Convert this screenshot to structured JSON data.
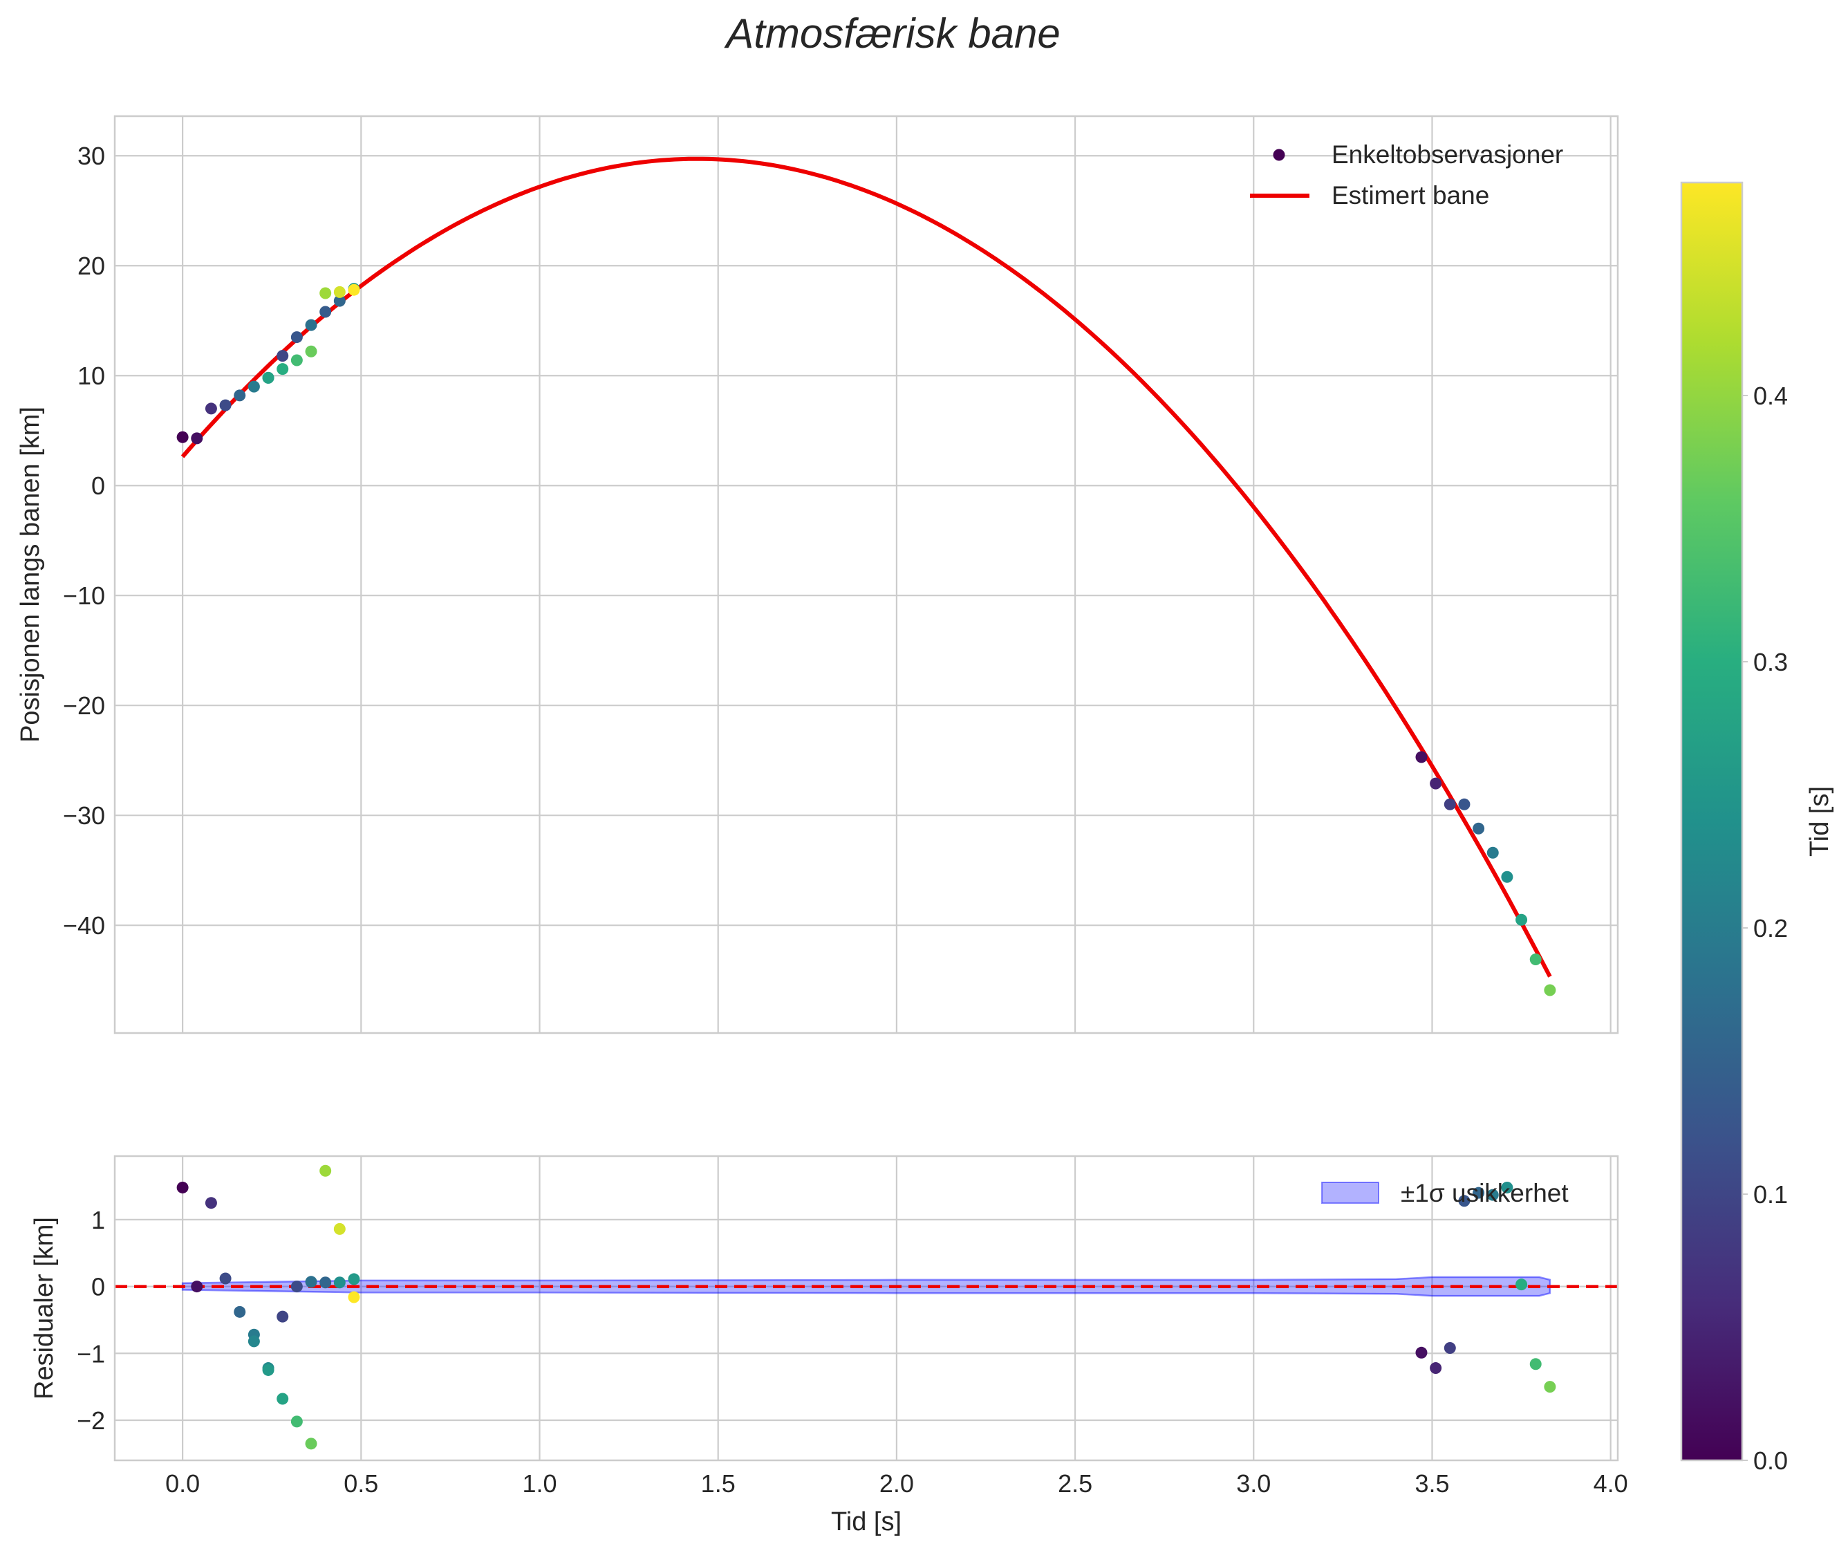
{
  "chart_data": [
    {
      "type": "scatter",
      "panel": "top",
      "title": "Atmosfærisk bane",
      "xlabel": "",
      "ylabel": "Posisjonen langs banen [km]",
      "xlim": [
        -0.19,
        4.02
      ],
      "ylim": [
        -49.8,
        33.6
      ],
      "xticks": [
        0.0,
        0.5,
        1.0,
        1.5,
        2.0,
        2.5,
        3.0,
        3.5,
        4.0
      ],
      "yticks": [
        30,
        20,
        10,
        0,
        -10,
        -20,
        -30,
        -40
      ],
      "ytick_labels": [
        "30",
        "20",
        "10",
        "0",
        "−10",
        "−20",
        "−30",
        "−40"
      ],
      "grid": true,
      "legend": {
        "location": "upper right",
        "entries": [
          "Enkeltobservasjoner",
          "Estimert bane"
        ]
      },
      "series": [
        {
          "name": "Enkeltobservasjoner",
          "kind": "scatter",
          "x": [
            0.0,
            0.04,
            0.08,
            0.12,
            0.16,
            0.2,
            0.24,
            0.28,
            0.32,
            0.36,
            0.4,
            0.44,
            0.48,
            0.24,
            0.28,
            0.32,
            0.36,
            0.4,
            0.44,
            0.48,
            3.47,
            3.51,
            3.55,
            3.59,
            3.63,
            3.67,
            3.71,
            3.75,
            3.79,
            3.83
          ],
          "y": [
            4.4,
            4.3,
            7.0,
            7.3,
            8.2,
            9.0,
            9.8,
            11.8,
            13.5,
            14.6,
            15.8,
            16.8,
            17.9,
            9.8,
            10.6,
            11.4,
            12.2,
            17.5,
            17.6,
            17.8,
            -24.7,
            -27.1,
            -29.0,
            -29.0,
            -31.2,
            -33.4,
            -35.6,
            -39.5,
            -43.1,
            -45.9
          ],
          "color_value": [
            0.0,
            0.02,
            0.07,
            0.11,
            0.16,
            0.2,
            0.23,
            0.1,
            0.13,
            0.18,
            0.14,
            0.16,
            0.26,
            0.28,
            0.3,
            0.33,
            0.37,
            0.41,
            0.45,
            0.48,
            0.02,
            0.05,
            0.09,
            0.13,
            0.16,
            0.2,
            0.24,
            0.28,
            0.33,
            0.38
          ]
        },
        {
          "name": "Estimert bane",
          "kind": "line",
          "color": "#ee0000",
          "model": "quadratic",
          "x_range": [
            0.0,
            3.83
          ],
          "points": {
            "x": [
              0.0,
              0.5,
              1.0,
              1.44,
              2.0,
              2.5,
              3.0,
              3.5,
              3.83
            ],
            "y": [
              2.8,
              17.9,
              27.1,
              29.8,
              25.7,
              15.3,
              -1.9,
              -26.0,
              -44.4
            ]
          }
        }
      ]
    },
    {
      "type": "scatter",
      "panel": "bottom",
      "xlabel": "Tid [s]",
      "ylabel": "Residualer [km]",
      "xlim": [
        -0.19,
        4.02
      ],
      "ylim": [
        -2.6,
        1.95
      ],
      "xticks": [
        0.0,
        0.5,
        1.0,
        1.5,
        2.0,
        2.5,
        3.0,
        3.5,
        4.0
      ],
      "xtick_labels": [
        "0.0",
        "0.5",
        "1.0",
        "1.5",
        "2.0",
        "2.5",
        "3.0",
        "3.5",
        "4.0"
      ],
      "yticks": [
        1,
        0,
        -1,
        -2
      ],
      "ytick_labels": [
        "1",
        "0",
        "−1",
        "−2"
      ],
      "grid": true,
      "legend": {
        "location": "upper right",
        "entries": [
          "±1σ usikkerhet"
        ]
      },
      "band": {
        "name": "±1σ usikkerhet",
        "color": "#0000ff",
        "opacity": 0.3,
        "x": [
          0.0,
          0.5,
          1.0,
          2.0,
          3.0,
          3.4,
          3.5,
          3.8,
          3.83
        ],
        "half_width": [
          0.05,
          0.09,
          0.09,
          0.1,
          0.1,
          0.11,
          0.14,
          0.14,
          0.1
        ]
      },
      "zero_line": {
        "y": 0,
        "color": "#ee0000",
        "style": "dashed"
      },
      "series": [
        {
          "name": "residuals",
          "x": [
            0.0,
            0.04,
            0.08,
            0.12,
            0.16,
            0.2,
            0.2,
            0.24,
            0.24,
            0.28,
            0.28,
            0.32,
            0.32,
            0.36,
            0.36,
            0.4,
            0.4,
            0.44,
            0.44,
            0.48,
            0.48,
            3.47,
            3.51,
            3.55,
            3.59,
            3.63,
            3.67,
            3.71,
            3.75,
            3.79,
            3.83
          ],
          "y": [
            1.48,
            0.0,
            1.25,
            0.12,
            -0.38,
            -0.72,
            -0.82,
            -1.22,
            -1.25,
            -0.45,
            -1.68,
            0.0,
            -2.02,
            0.07,
            -2.35,
            0.06,
            1.73,
            0.06,
            0.86,
            0.11,
            -0.16,
            -0.99,
            -1.22,
            -0.92,
            1.28,
            1.4,
            1.37,
            1.48,
            0.03,
            -1.16,
            -1.5
          ],
          "color_value": [
            0.0,
            0.02,
            0.07,
            0.11,
            0.16,
            0.2,
            0.22,
            0.23,
            0.26,
            0.1,
            0.28,
            0.11,
            0.33,
            0.18,
            0.37,
            0.16,
            0.41,
            0.24,
            0.45,
            0.26,
            0.48,
            0.02,
            0.05,
            0.09,
            0.13,
            0.16,
            0.2,
            0.24,
            0.3,
            0.33,
            0.38
          ]
        }
      ]
    }
  ],
  "colorbar": {
    "label": "Tid [s]",
    "colormap": "viridis",
    "range": [
      0.0,
      0.48
    ],
    "ticks": [
      0.0,
      0.1,
      0.2,
      0.3,
      0.4
    ],
    "tick_labels": [
      "0.0",
      "0.1",
      "0.2",
      "0.3",
      "0.4"
    ]
  }
}
